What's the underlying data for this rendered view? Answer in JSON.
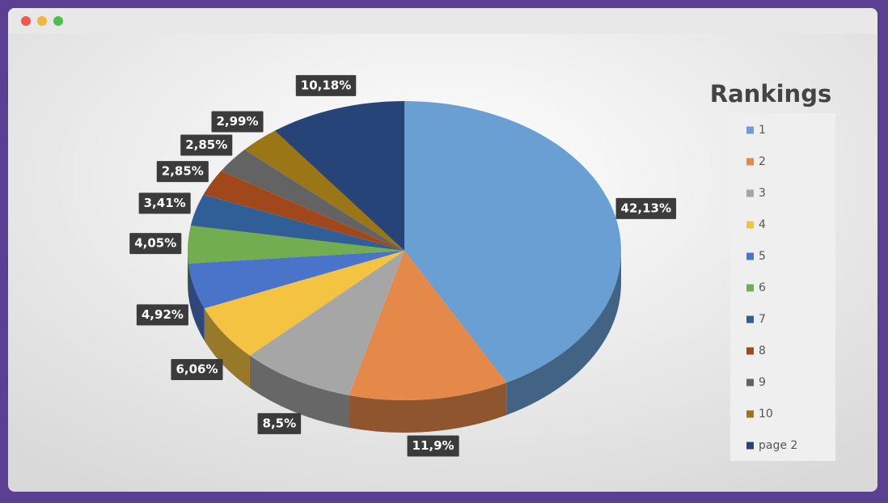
{
  "chart_data": {
    "type": "pie",
    "title": "Rankings",
    "categories": [
      "1",
      "2",
      "3",
      "4",
      "5",
      "6",
      "7",
      "8",
      "9",
      "10",
      "page 2"
    ],
    "values": [
      42.13,
      11.9,
      8.5,
      6.06,
      4.92,
      4.05,
      3.41,
      2.85,
      2.85,
      2.99,
      10.18
    ],
    "value_labels": [
      "42,13%",
      "11,9%",
      "8,5%",
      "6,06%",
      "4,92%",
      "4,05%",
      "3,41%",
      "2,85%",
      "2,85%",
      "2,99%",
      "10,18%"
    ],
    "colors": [
      "#6a9fd4",
      "#e5894a",
      "#a6a6a6",
      "#f5c342",
      "#4a74c9",
      "#72ad4f",
      "#2f5f96",
      "#a0481c",
      "#636363",
      "#9a7616",
      "#264478"
    ],
    "legend": "right"
  }
}
